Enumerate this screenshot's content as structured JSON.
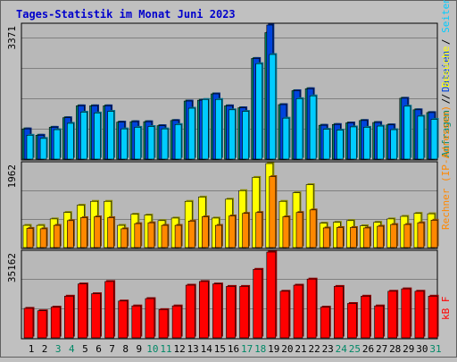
{
  "title": "Tages-Statistik im Monat Juni 2023",
  "colors": {
    "background": "#c0c0c0",
    "plot": "#b8b8b8",
    "title": "#0000cc",
    "anfragen": "#008866",
    "dateien": "#0044dd",
    "seiten": "#00ccff",
    "besuche": "#ffff00",
    "rechner": "#ff8800",
    "kb": "#ff0000",
    "weekend_label": "#008866",
    "weekday_label": "#000000"
  },
  "chart_data": [
    {
      "type": "bar",
      "panel": "top",
      "scale_label": "3371",
      "ylim": [
        0,
        3371
      ],
      "grid": true,
      "legend": "right-vertical",
      "legend_labels": [
        {
          "key": "anfragen",
          "text": "Anfragen"
        },
        {
          "key": "sep",
          "text": " / "
        },
        {
          "key": "dateien",
          "text": "Dateien"
        },
        {
          "key": "sep",
          "text": " / "
        },
        {
          "key": "seiten",
          "text": "Seiten"
        }
      ],
      "x": [
        "1",
        "2",
        "3",
        "4",
        "5",
        "6",
        "7",
        "8",
        "9",
        "10",
        "11",
        "12",
        "13",
        "14",
        "15",
        "16",
        "17",
        "18",
        "19",
        "20",
        "21",
        "22",
        "23",
        "24",
        "25",
        "26",
        "27",
        "28",
        "29",
        "30",
        "31"
      ],
      "series": [
        {
          "name": "Anfragen",
          "values": [
            760,
            600,
            800,
            1040,
            1340,
            1340,
            1340,
            930,
            940,
            940,
            840,
            970,
            1460,
            1480,
            1640,
            1340,
            1290,
            2530,
            3180,
            1370,
            1720,
            1770,
            850,
            870,
            910,
            970,
            920,
            860,
            1530,
            1240,
            1170
          ]
        },
        {
          "name": "Dateien",
          "values": [
            760,
            600,
            800,
            1040,
            1340,
            1340,
            1340,
            930,
            940,
            940,
            840,
            970,
            1460,
            1480,
            1640,
            1340,
            1290,
            2530,
            3371,
            1370,
            1720,
            1770,
            850,
            870,
            910,
            970,
            920,
            860,
            1530,
            1240,
            1170
          ]
        },
        {
          "name": "Seiten",
          "values": [
            600,
            520,
            740,
            900,
            1180,
            1160,
            1200,
            760,
            800,
            820,
            760,
            870,
            1280,
            1500,
            1500,
            1240,
            1200,
            2400,
            2630,
            1030,
            1520,
            1590,
            750,
            730,
            810,
            800,
            830,
            740,
            1330,
            1080,
            1000
          ]
        }
      ]
    },
    {
      "type": "bar",
      "panel": "middle",
      "scale_label": "1962",
      "ylim": [
        0,
        1962
      ],
      "grid": true,
      "legend": "right-vertical",
      "legend_labels": [
        {
          "key": "rechner",
          "text": "Rechner (IP-Adressen)"
        },
        {
          "key": "sep",
          "text": " / "
        },
        {
          "key": "besuche",
          "text": "Besuche"
        }
      ],
      "x": [
        "1",
        "2",
        "3",
        "4",
        "5",
        "6",
        "7",
        "8",
        "9",
        "10",
        "11",
        "12",
        "13",
        "14",
        "15",
        "16",
        "17",
        "18",
        "19",
        "20",
        "21",
        "22",
        "23",
        "24",
        "25",
        "26",
        "27",
        "28",
        "29",
        "30",
        "31"
      ],
      "series": [
        {
          "name": "Besuche",
          "values": [
            520,
            520,
            670,
            820,
            990,
            1080,
            1080,
            520,
            780,
            760,
            630,
            690,
            1080,
            1180,
            690,
            1130,
            1330,
            1640,
            1962,
            1080,
            1280,
            1470,
            570,
            590,
            630,
            510,
            590,
            670,
            730,
            800,
            790
          ]
        },
        {
          "name": "Rechner (IP-Adressen)",
          "values": [
            450,
            440,
            520,
            630,
            700,
            720,
            700,
            440,
            560,
            580,
            520,
            520,
            620,
            720,
            520,
            740,
            800,
            820,
            1660,
            720,
            820,
            880,
            460,
            470,
            470,
            460,
            500,
            540,
            540,
            580,
            640
          ]
        }
      ]
    },
    {
      "type": "bar",
      "panel": "bottom",
      "scale_label": "35162",
      "ylim": [
        0,
        35162
      ],
      "grid": true,
      "legend": "right-vertical",
      "legend_labels": [
        {
          "key": "kb",
          "text": "kB F"
        }
      ],
      "x": [
        "1",
        "2",
        "3",
        "4",
        "5",
        "6",
        "7",
        "8",
        "9",
        "10",
        "11",
        "12",
        "13",
        "14",
        "15",
        "16",
        "17",
        "18",
        "19",
        "20",
        "21",
        "22",
        "23",
        "24",
        "25",
        "26",
        "27",
        "28",
        "29",
        "30",
        "31"
      ],
      "series": [
        {
          "name": "kB F",
          "values": [
            12100,
            11100,
            12600,
            17100,
            22100,
            18100,
            23100,
            15100,
            13100,
            16100,
            11600,
            13100,
            21600,
            23100,
            22100,
            21100,
            21100,
            28100,
            35162,
            19100,
            21600,
            24100,
            12600,
            21100,
            14100,
            17100,
            13100,
            19100,
            20100,
            19100,
            17100
          ]
        }
      ]
    }
  ],
  "x_labels": [
    {
      "text": "1",
      "weekend": false
    },
    {
      "text": "2",
      "weekend": false
    },
    {
      "text": "3",
      "weekend": true
    },
    {
      "text": "4",
      "weekend": true
    },
    {
      "text": "5",
      "weekend": false
    },
    {
      "text": "6",
      "weekend": false
    },
    {
      "text": "7",
      "weekend": false
    },
    {
      "text": "8",
      "weekend": false
    },
    {
      "text": "9",
      "weekend": false
    },
    {
      "text": "10",
      "weekend": true
    },
    {
      "text": "11",
      "weekend": true
    },
    {
      "text": "12",
      "weekend": false
    },
    {
      "text": "13",
      "weekend": false
    },
    {
      "text": "14",
      "weekend": false
    },
    {
      "text": "15",
      "weekend": false
    },
    {
      "text": "16",
      "weekend": false
    },
    {
      "text": "17",
      "weekend": true
    },
    {
      "text": "18",
      "weekend": true
    },
    {
      "text": "19",
      "weekend": false
    },
    {
      "text": "20",
      "weekend": false
    },
    {
      "text": "21",
      "weekend": false
    },
    {
      "text": "22",
      "weekend": false
    },
    {
      "text": "23",
      "weekend": false
    },
    {
      "text": "24",
      "weekend": true
    },
    {
      "text": "25",
      "weekend": true
    },
    {
      "text": "26",
      "weekend": false
    },
    {
      "text": "27",
      "weekend": false
    },
    {
      "text": "28",
      "weekend": false
    },
    {
      "text": "29",
      "weekend": false
    },
    {
      "text": "30",
      "weekend": false
    },
    {
      "text": "31",
      "weekend": true
    }
  ]
}
